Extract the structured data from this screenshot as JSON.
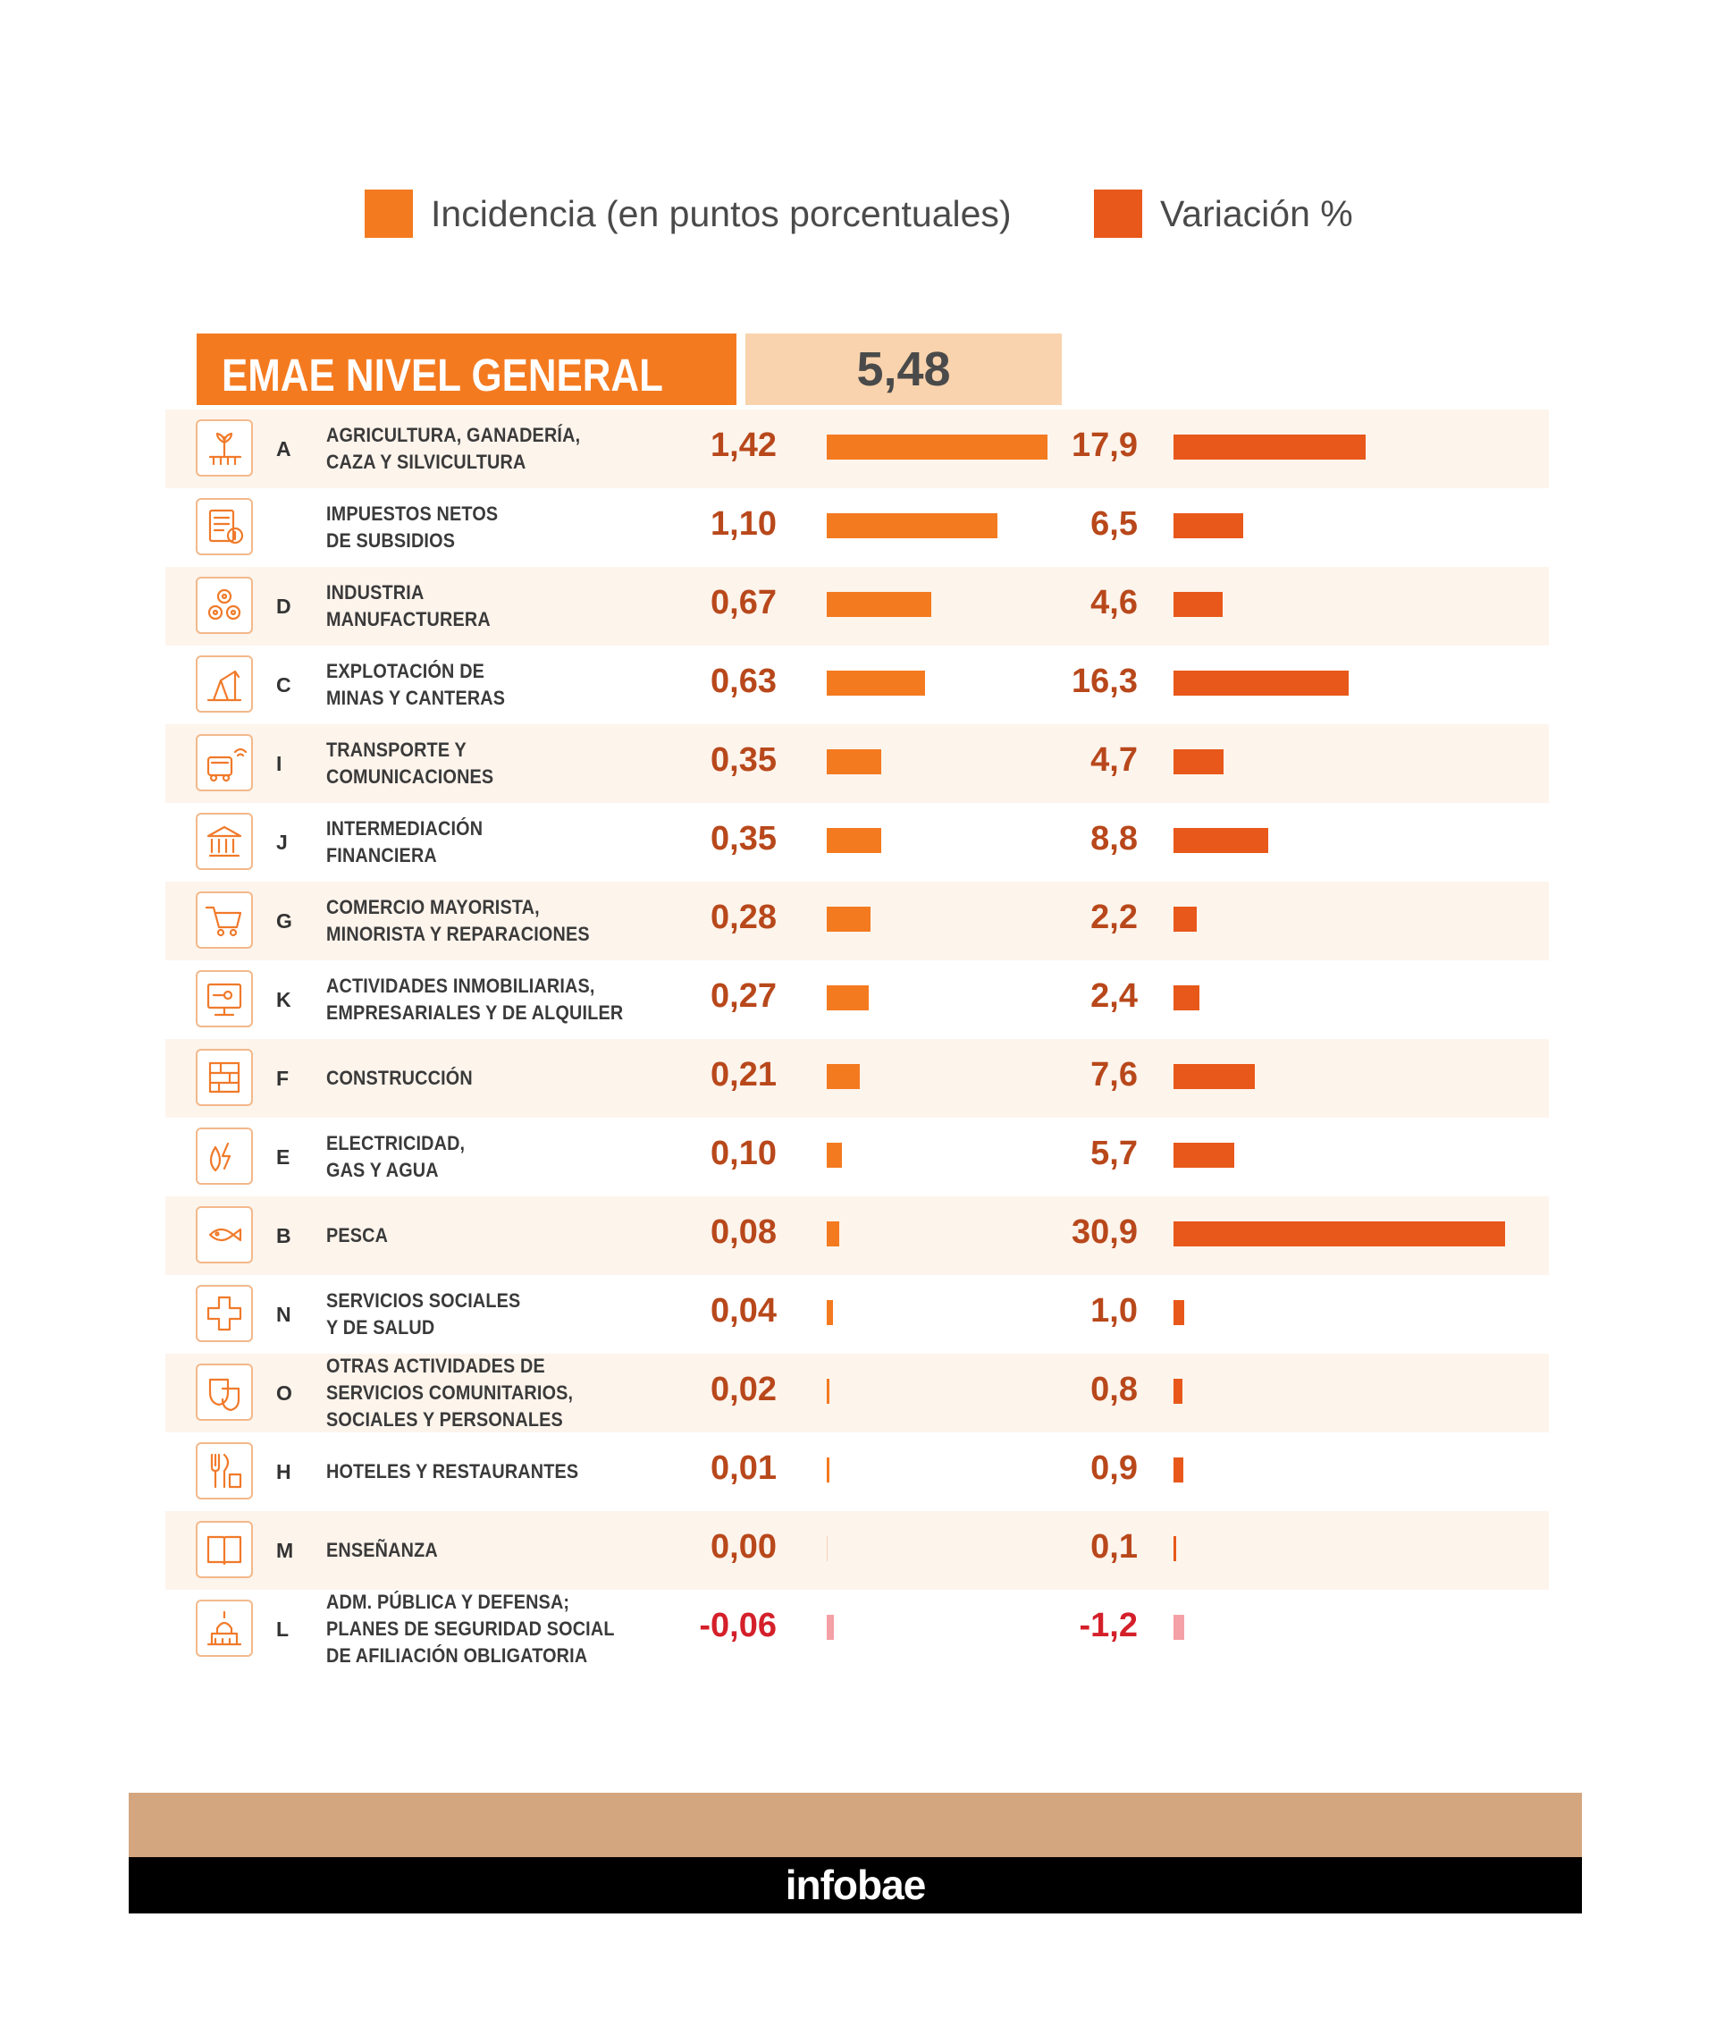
{
  "legend": {
    "incidencia_label": "Incidencia (en puntos porcentuales)",
    "variacion_label": "Variación %",
    "incidencia_color": "#f47a20",
    "variacion_color": "#e8581a"
  },
  "header": {
    "title": "EMAE NIVEL GENERAL",
    "value": "5,48"
  },
  "chart_data": {
    "type": "bar",
    "title": "EMAE NIVEL GENERAL",
    "total": 5.48,
    "series": [
      {
        "name": "Incidencia (en puntos porcentuales)",
        "key": "incidencia"
      },
      {
        "name": "Variación %",
        "key": "variacion"
      }
    ],
    "rows": [
      {
        "icon": "agriculture-icon",
        "letter": "A",
        "label": [
          "AGRICULTURA, GANADERÍA,",
          "CAZA Y SILVICULTURA"
        ],
        "incidencia": 1.42,
        "incidencia_text": "1,42",
        "variacion": 17.9,
        "variacion_text": "17,9"
      },
      {
        "icon": "taxes-icon",
        "letter": "",
        "label": [
          "IMPUESTOS NETOS",
          "DE SUBSIDIOS"
        ],
        "incidencia": 1.1,
        "incidencia_text": "1,10",
        "variacion": 6.5,
        "variacion_text": "6,5"
      },
      {
        "icon": "gears-icon",
        "letter": "D",
        "label": [
          "INDUSTRIA",
          "MANUFACTURERA"
        ],
        "incidencia": 0.67,
        "incidencia_text": "0,67",
        "variacion": 4.6,
        "variacion_text": "4,6"
      },
      {
        "icon": "oil-pump-icon",
        "letter": "C",
        "label": [
          "EXPLOTACIÓN DE",
          "MINAS Y CANTERAS"
        ],
        "incidencia": 0.63,
        "incidencia_text": "0,63",
        "variacion": 16.3,
        "variacion_text": "16,3"
      },
      {
        "icon": "transport-icon",
        "letter": "I",
        "label": [
          "TRANSPORTE Y",
          "COMUNICACIONES"
        ],
        "incidencia": 0.35,
        "incidencia_text": "0,35",
        "variacion": 4.7,
        "variacion_text": "4,7"
      },
      {
        "icon": "bank-icon",
        "letter": "J",
        "label": [
          "INTERMEDIACIÓN",
          "FINANCIERA"
        ],
        "incidencia": 0.35,
        "incidencia_text": "0,35",
        "variacion": 8.8,
        "variacion_text": "8,8"
      },
      {
        "icon": "shopping-cart-icon",
        "letter": "G",
        "label": [
          "COMERCIO MAYORISTA,",
          "MINORISTA Y REPARACIONES"
        ],
        "incidencia": 0.28,
        "incidencia_text": "0,28",
        "variacion": 2.2,
        "variacion_text": "2,2"
      },
      {
        "icon": "real-estate-icon",
        "letter": "K",
        "label": [
          "ACTIVIDADES INMOBILIARIAS,",
          "EMPRESARIALES Y DE ALQUILER"
        ],
        "incidencia": 0.27,
        "incidencia_text": "0,27",
        "variacion": 2.4,
        "variacion_text": "2,4"
      },
      {
        "icon": "bricks-icon",
        "letter": "F",
        "label": [
          "CONSTRUCCIÓN"
        ],
        "incidencia": 0.21,
        "incidencia_text": "0,21",
        "variacion": 7.6,
        "variacion_text": "7,6"
      },
      {
        "icon": "energy-icon",
        "letter": "E",
        "label": [
          "ELECTRICIDAD,",
          "GAS Y AGUA"
        ],
        "incidencia": 0.1,
        "incidencia_text": "0,10",
        "variacion": 5.7,
        "variacion_text": "5,7"
      },
      {
        "icon": "fish-icon",
        "letter": "B",
        "label": [
          "PESCA"
        ],
        "incidencia": 0.08,
        "incidencia_text": "0,08",
        "variacion": 30.9,
        "variacion_text": "30,9"
      },
      {
        "icon": "health-cross-icon",
        "letter": "N",
        "label": [
          "SERVICIOS SOCIALES",
          "Y DE SALUD"
        ],
        "incidencia": 0.04,
        "incidencia_text": "0,04",
        "variacion": 1.0,
        "variacion_text": "1,0"
      },
      {
        "icon": "theater-masks-icon",
        "letter": "O",
        "label": [
          "OTRAS ACTIVIDADES DE",
          "SERVICIOS COMUNITARIOS,",
          "SOCIALES Y PERSONALES"
        ],
        "incidencia": 0.02,
        "incidencia_text": "0,02",
        "variacion": 0.8,
        "variacion_text": "0,8"
      },
      {
        "icon": "cutlery-icon",
        "letter": "H",
        "label": [
          "HOTELES Y RESTAURANTES"
        ],
        "incidencia": 0.01,
        "incidencia_text": "0,01",
        "variacion": 0.9,
        "variacion_text": "0,9"
      },
      {
        "icon": "book-icon",
        "letter": "M",
        "label": [
          "ENSEÑANZA"
        ],
        "incidencia": 0.0,
        "incidencia_text": "0,00",
        "variacion": 0.1,
        "variacion_text": "0,1"
      },
      {
        "icon": "capitol-icon",
        "letter": "L",
        "label": [
          "ADM. PÚBLICA Y DEFENSA;",
          "PLANES DE SEGURIDAD SOCIAL",
          "DE AFILIACIÓN OBLIGATORIA"
        ],
        "incidencia": -0.06,
        "incidencia_text": "-0,06",
        "variacion": -1.2,
        "variacion_text": "-1,2"
      }
    ]
  },
  "footer": {
    "brand": "infobae"
  }
}
